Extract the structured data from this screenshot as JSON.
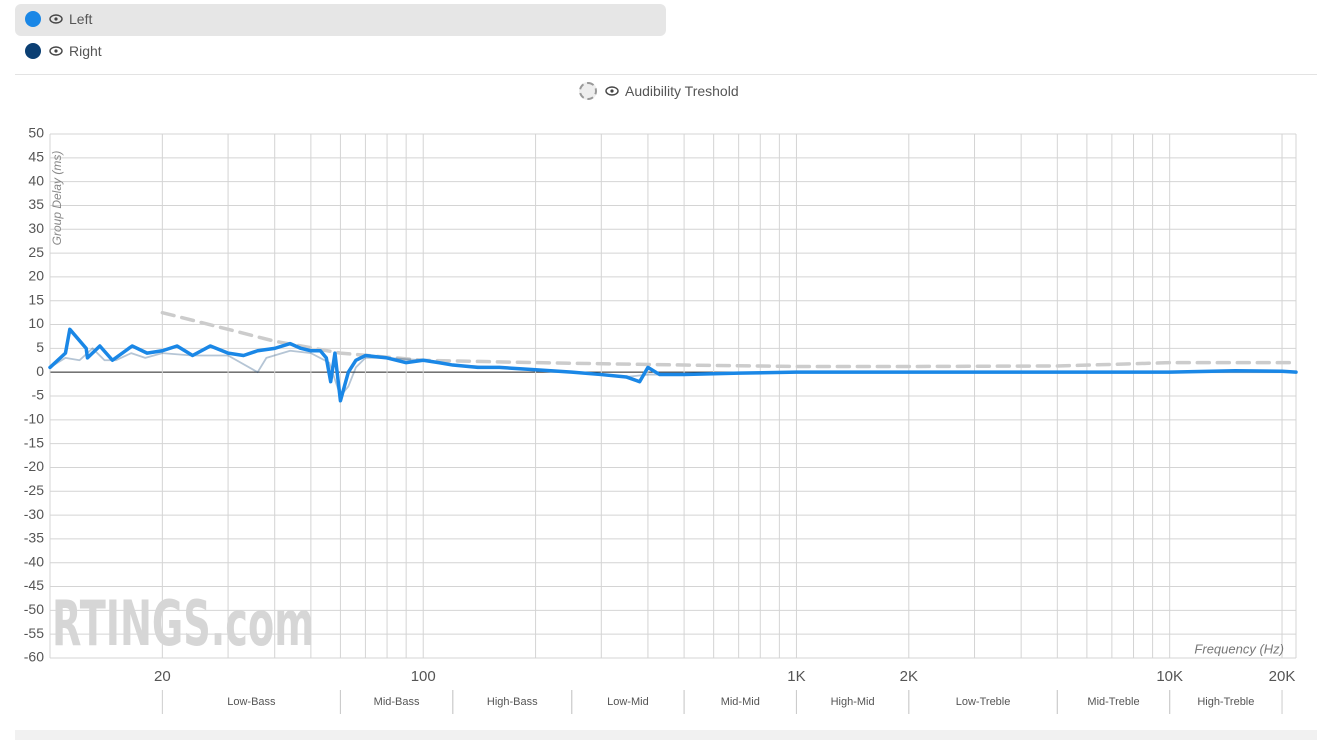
{
  "chart_data": {
    "type": "line",
    "xscale": "log",
    "grid": true,
    "x_label": "Frequency (Hz)",
    "y_label": "Group Delay (ms)",
    "watermark": "RTINGS.com",
    "xlim": [
      10,
      21800
    ],
    "ylim": [
      -60,
      50
    ],
    "yticks": [
      50,
      45,
      40,
      35,
      30,
      25,
      20,
      15,
      10,
      5,
      0,
      -5,
      -10,
      -15,
      -20,
      -25,
      -30,
      -35,
      -40,
      -45,
      -50,
      -55,
      -60
    ],
    "xticks": [
      20,
      100,
      {
        "value": 1000,
        "label": "1K"
      },
      {
        "value": 2000,
        "label": "2K"
      },
      {
        "value": 10000,
        "label": "10K"
      },
      {
        "value": 20000,
        "label": "20K"
      }
    ],
    "xgrid": [
      20,
      30,
      40,
      50,
      60,
      70,
      80,
      90,
      100,
      200,
      300,
      400,
      500,
      600,
      700,
      800,
      900,
      1000,
      2000,
      3000,
      4000,
      5000,
      6000,
      7000,
      8000,
      9000,
      10000,
      20000
    ],
    "bands": [
      {
        "label": "Low-Bass",
        "from": 20,
        "to": 60
      },
      {
        "label": "Mid-Bass",
        "from": 60,
        "to": 120
      },
      {
        "label": "High-Bass",
        "from": 120,
        "to": 250
      },
      {
        "label": "Low-Mid",
        "from": 250,
        "to": 500
      },
      {
        "label": "Mid-Mid",
        "from": 500,
        "to": 1000
      },
      {
        "label": "High-Mid",
        "from": 1000,
        "to": 2000
      },
      {
        "label": "Low-Treble",
        "from": 2000,
        "to": 5000
      },
      {
        "label": "Mid-Treble",
        "from": 5000,
        "to": 10000
      },
      {
        "label": "High-Treble",
        "from": 10000,
        "to": 20000
      }
    ],
    "series": [
      {
        "name": "Left",
        "color": "#1a87e6",
        "x": [
          10,
          11,
          11.3,
          12.5,
          12.6,
          13.6,
          14.7,
          16.6,
          18.2,
          20,
          21.9,
          24.1,
          26.9,
          30,
          33,
          36,
          40,
          44,
          47,
          50,
          53,
          55,
          56.5,
          58,
          60,
          63,
          66,
          70,
          80,
          90,
          100,
          110,
          120,
          140,
          160,
          200,
          250,
          300,
          350,
          380,
          400,
          430,
          500,
          700,
          1000,
          2000,
          5000,
          10000,
          15000,
          20000,
          21800
        ],
        "values": [
          1,
          4,
          9,
          5,
          3,
          5.5,
          2.5,
          5.5,
          4,
          4.5,
          5.5,
          3.5,
          5.5,
          4,
          3.5,
          4.5,
          5,
          6,
          5,
          4.5,
          4.5,
          3,
          -2,
          4,
          -6,
          0,
          2.5,
          3.5,
          3,
          2,
          2.5,
          2,
          1.5,
          1,
          1,
          0.5,
          0,
          -0.5,
          -1,
          -2,
          1,
          -0.5,
          -0.5,
          -0.2,
          0,
          0,
          0,
          0,
          0.3,
          0.2,
          0
        ]
      },
      {
        "name": "Right",
        "color": "#0b3f73",
        "x": [
          10,
          11,
          12,
          13,
          14,
          15,
          16.5,
          18,
          20,
          24,
          30,
          36,
          38,
          44,
          50,
          56,
          60,
          63,
          66,
          70,
          80,
          100,
          120,
          160,
          250,
          350,
          400,
          430,
          1000,
          10000,
          21800
        ],
        "values": [
          1,
          3,
          2.5,
          5,
          2.5,
          2.5,
          4,
          3,
          4,
          3.5,
          3.5,
          0,
          3,
          4.5,
          4,
          2,
          -5,
          -3,
          1,
          3,
          3,
          2.5,
          1.5,
          1,
          0,
          -1,
          -0.5,
          -0.5,
          0,
          0,
          0
        ]
      },
      {
        "name": "Audibility Treshold",
        "color": "#cccccc",
        "dash": true,
        "x": [
          20,
          30,
          40,
          60,
          100,
          200,
          500,
          1000,
          2000,
          5000,
          10000,
          20000,
          21800
        ],
        "values": [
          12.5,
          9,
          6.5,
          4,
          2.5,
          2,
          1.5,
          1.2,
          1.2,
          1.3,
          2,
          2,
          2
        ]
      }
    ]
  }
}
